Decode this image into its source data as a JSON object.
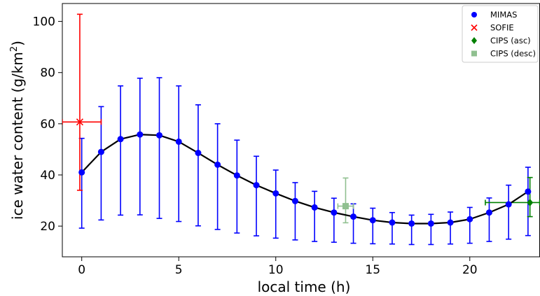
{
  "chart_data": {
    "type": "line",
    "xlabel": "local time (h)",
    "ylabel_main": "ice water content (g/km",
    "ylabel_sup": "2",
    "ylabel_tail": ")",
    "xlim": [
      -1,
      23.6
    ],
    "ylim": [
      8,
      107
    ],
    "x_ticks": [
      0,
      5,
      10,
      15,
      20
    ],
    "y_ticks": [
      20,
      40,
      60,
      80,
      100
    ],
    "grid": false,
    "legend_position": "top-right",
    "series": [
      {
        "name": "MIMAS",
        "color": "#0000ff",
        "line_color": "#000000",
        "marker": "circle",
        "x": [
          0,
          1,
          2,
          3,
          4,
          5,
          6,
          7,
          8,
          9,
          10,
          11,
          12,
          13,
          14,
          15,
          16,
          17,
          18,
          19,
          20,
          21,
          22,
          23
        ],
        "y": [
          41,
          49,
          54,
          55.8,
          55.5,
          53,
          48.6,
          44,
          39.8,
          36,
          32.8,
          29.8,
          27.3,
          25.3,
          23.7,
          22.3,
          21.4,
          21,
          21,
          21.4,
          22.7,
          25.3,
          28.5,
          33.5
        ],
        "y_lower": [
          19.2,
          22.4,
          24.3,
          24.4,
          23,
          21.8,
          20.1,
          18.7,
          17.3,
          16.2,
          15.3,
          14.6,
          14,
          13.7,
          13.3,
          13.1,
          13,
          12.8,
          12.8,
          13,
          13.3,
          14,
          14.9,
          16.3
        ],
        "y_upper": [
          54.3,
          66.7,
          74.8,
          77.8,
          78,
          74.8,
          67.4,
          60,
          53.6,
          47.3,
          41.9,
          37,
          33.6,
          30.9,
          28.7,
          27,
          25.3,
          24.3,
          24.6,
          25.5,
          27.3,
          31,
          36,
          43
        ]
      },
      {
        "name": "SOFIE",
        "color": "#ff0000",
        "marker": "x",
        "x": [
          -0.1
        ],
        "y": [
          60.7
        ],
        "y_lower": [
          34
        ],
        "y_upper": [
          102.8
        ],
        "x_lower": [
          -1
        ],
        "x_upper": [
          1
        ]
      },
      {
        "name": "CIPS (asc)",
        "color": "#008000",
        "marker": "diamond",
        "x": [
          23.1
        ],
        "y": [
          29.2
        ],
        "y_lower": [
          23.7
        ],
        "y_upper": [
          39
        ],
        "x_lower": [
          20.8
        ],
        "x_upper": [
          23.6
        ]
      },
      {
        "name": "CIPS (desc)",
        "color": "#90c090",
        "marker": "square",
        "x": [
          13.6
        ],
        "y": [
          27.8
        ],
        "y_lower": [
          21.3
        ],
        "y_upper": [
          38.8
        ],
        "x_lower": [
          13.2
        ],
        "x_upper": [
          14
        ]
      }
    ]
  }
}
